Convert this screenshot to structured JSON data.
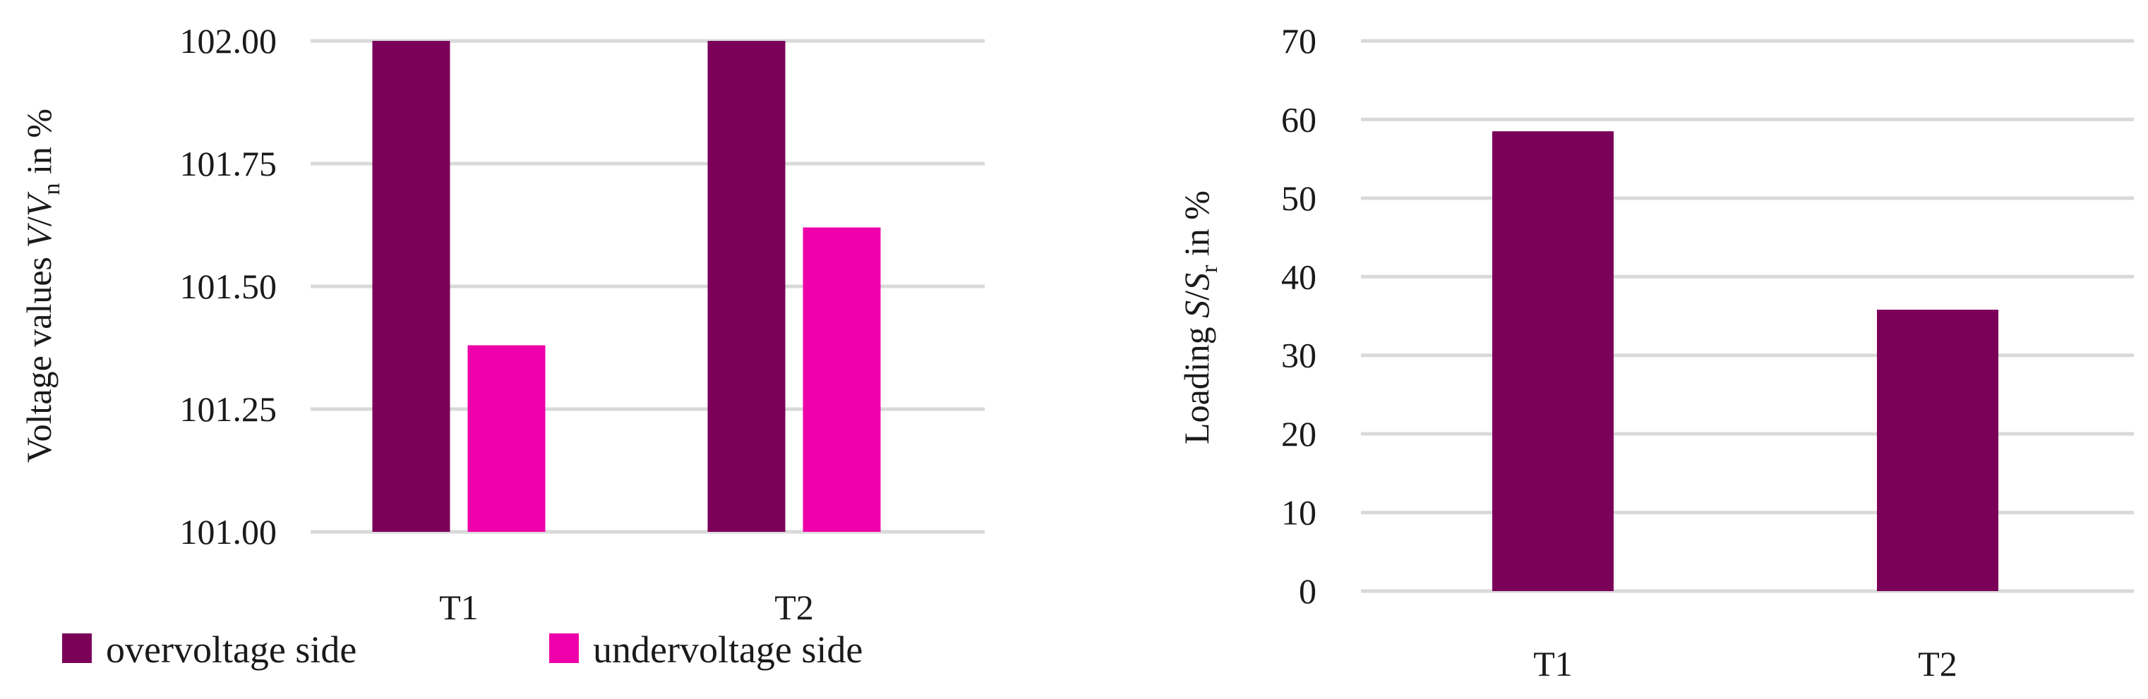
{
  "chart_data": [
    {
      "type": "bar",
      "title": "",
      "xlabel": "",
      "ylabel_parts": {
        "a": "Voltage values ",
        "b": "V",
        "c": "/",
        "d": "V",
        "e": "n",
        "f": " in %"
      },
      "categories": [
        "T1",
        "T2"
      ],
      "ylim": [
        101.0,
        102.0
      ],
      "yticks": [
        101.0,
        101.25,
        101.5,
        101.75,
        102.0
      ],
      "ytick_labels": [
        "101.00",
        "101.25",
        "101.50",
        "101.75",
        "102.00"
      ],
      "grid": true,
      "legend_position": "bottom",
      "series": [
        {
          "name": "overvoltage side",
          "color": "#7b0058",
          "values": [
            102.0,
            102.0
          ]
        },
        {
          "name": "undervoltage side",
          "color": "#ee00aa",
          "values": [
            101.38,
            101.62
          ]
        }
      ]
    },
    {
      "type": "bar",
      "title": "",
      "xlabel": "",
      "ylabel_parts": {
        "a": "Loading ",
        "b": "S",
        "c": "/",
        "d": "S",
        "e": "r",
        "f": " in %"
      },
      "categories": [
        "T1",
        "T2"
      ],
      "ylim": [
        0,
        70
      ],
      "yticks": [
        0,
        10,
        20,
        30,
        40,
        50,
        60,
        70
      ],
      "ytick_labels": [
        "0",
        "10",
        "20",
        "30",
        "40",
        "50",
        "60",
        "70"
      ],
      "grid": true,
      "series": [
        {
          "color": "#7b0058",
          "values": [
            58.5,
            35.8
          ]
        }
      ]
    }
  ]
}
